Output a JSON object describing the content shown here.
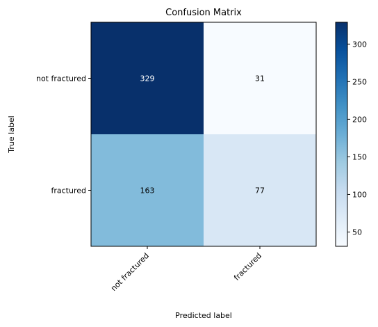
{
  "chart_data": {
    "type": "heatmap",
    "title": "Confusion Matrix",
    "xlabel": "Predicted label",
    "ylabel": "True label",
    "x_categories": [
      "not fractured",
      "fractured"
    ],
    "y_categories": [
      "not fractured",
      "fractured"
    ],
    "values": [
      [
        329,
        31
      ],
      [
        163,
        77
      ]
    ],
    "colormap": "Blues",
    "colorbar": {
      "range": [
        31,
        329
      ],
      "ticks": [
        50,
        100,
        150,
        200,
        250,
        300
      ]
    }
  }
}
